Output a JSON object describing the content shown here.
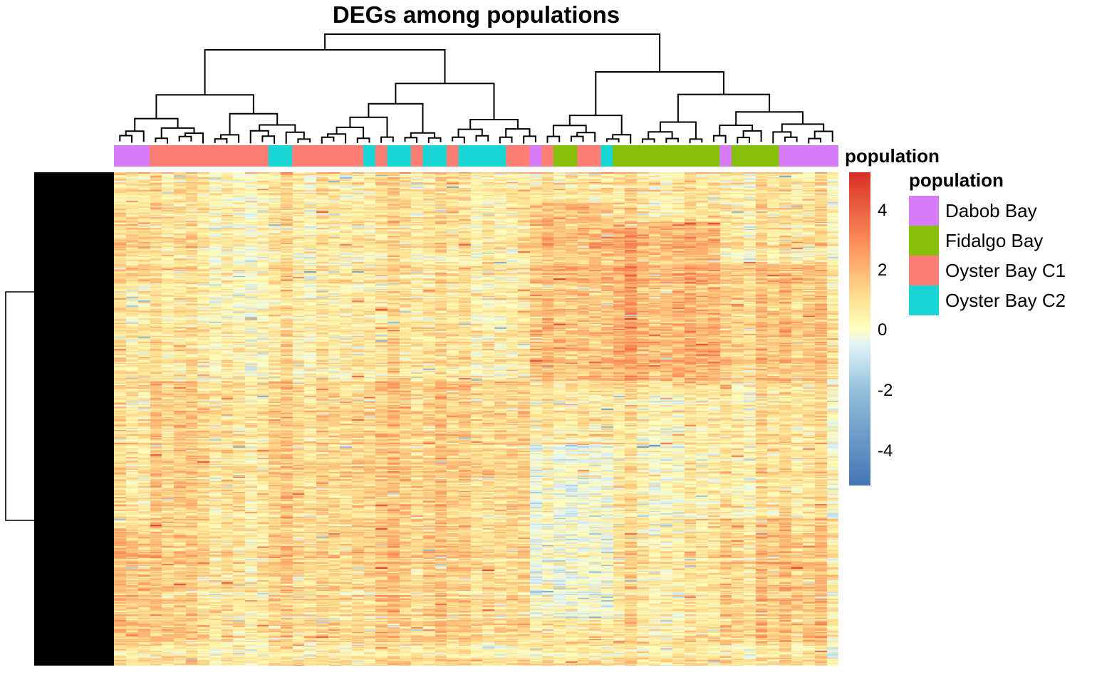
{
  "chart_data": {
    "type": "heatmap",
    "title": "DEGs among populations",
    "annotation_label": "population",
    "legend": {
      "title": "population",
      "items": [
        {
          "label": "Dabob Bay",
          "color": "#D77CF7"
        },
        {
          "label": "Fidalgo Bay",
          "color": "#87C00A"
        },
        {
          "label": "Oyster Bay C1",
          "color": "#FA7E73"
        },
        {
          "label": "Oyster Bay C2",
          "color": "#1BD5D5"
        }
      ]
    },
    "color_scale": {
      "range": [
        -5,
        5
      ],
      "ticks": [
        "4",
        "2",
        "0",
        "-2",
        "-4"
      ],
      "colors": [
        "#4575B4",
        "#91BFDB",
        "#E0F3F8",
        "#FFFFBF",
        "#FEE090",
        "#FC8D59",
        "#D73027"
      ]
    },
    "n_rows": 420,
    "column_groups": [
      "Dabob Bay",
      "Dabob Bay",
      "Dabob Bay",
      "Oyster Bay C1",
      "Oyster Bay C1",
      "Oyster Bay C1",
      "Oyster Bay C1",
      "Oyster Bay C1",
      "Oyster Bay C1",
      "Oyster Bay C1",
      "Oyster Bay C1",
      "Oyster Bay C1",
      "Oyster Bay C1",
      "Oyster Bay C2",
      "Oyster Bay C2",
      "Oyster Bay C1",
      "Oyster Bay C1",
      "Oyster Bay C1",
      "Oyster Bay C1",
      "Oyster Bay C1",
      "Oyster Bay C1",
      "Oyster Bay C2",
      "Oyster Bay C1",
      "Oyster Bay C2",
      "Oyster Bay C2",
      "Oyster Bay C1",
      "Oyster Bay C2",
      "Oyster Bay C2",
      "Oyster Bay C1",
      "Oyster Bay C2",
      "Oyster Bay C2",
      "Oyster Bay C2",
      "Oyster Bay C2",
      "Oyster Bay C1",
      "Oyster Bay C1",
      "Dabob Bay",
      "Oyster Bay C1",
      "Fidalgo Bay",
      "Fidalgo Bay",
      "Oyster Bay C1",
      "Oyster Bay C1",
      "Oyster Bay C2",
      "Fidalgo Bay",
      "Fidalgo Bay",
      "Fidalgo Bay",
      "Fidalgo Bay",
      "Fidalgo Bay",
      "Fidalgo Bay",
      "Fidalgo Bay",
      "Fidalgo Bay",
      "Fidalgo Bay",
      "Dabob Bay",
      "Fidalgo Bay",
      "Fidalgo Bay",
      "Fidalgo Bay",
      "Fidalgo Bay",
      "Dabob Bay",
      "Dabob Bay",
      "Dabob Bay",
      "Dabob Bay",
      "Dabob Bay"
    ],
    "column_block_effects": [
      {
        "columns": [
          0,
          2
        ],
        "rows": [
          0.08,
          0.22
        ],
        "value": 0.6
      },
      {
        "columns": [
          35,
          41
        ],
        "rows": [
          0.06,
          0.42
        ],
        "value": 1.1
      },
      {
        "columns": [
          42,
          50
        ],
        "rows": [
          0.1,
          0.42
        ],
        "value": 1.4
      },
      {
        "columns": [
          51,
          60
        ],
        "rows": [
          0.18,
          0.42
        ],
        "value": 0.9
      },
      {
        "columns": [
          3,
          34
        ],
        "rows": [
          0.42,
          0.95
        ],
        "value": 0.6
      },
      {
        "columns": [
          35,
          41
        ],
        "rows": [
          0.55,
          0.9
        ],
        "value": -0.9
      },
      {
        "columns": [
          42,
          50
        ],
        "rows": [
          0.45,
          0.7
        ],
        "value": -0.4
      },
      {
        "columns": [
          0,
          2
        ],
        "rows": [
          0.72,
          0.95
        ],
        "value": 1.0
      },
      {
        "columns": [
          51,
          60
        ],
        "rows": [
          0.7,
          0.95
        ],
        "value": 0.8
      }
    ]
  }
}
